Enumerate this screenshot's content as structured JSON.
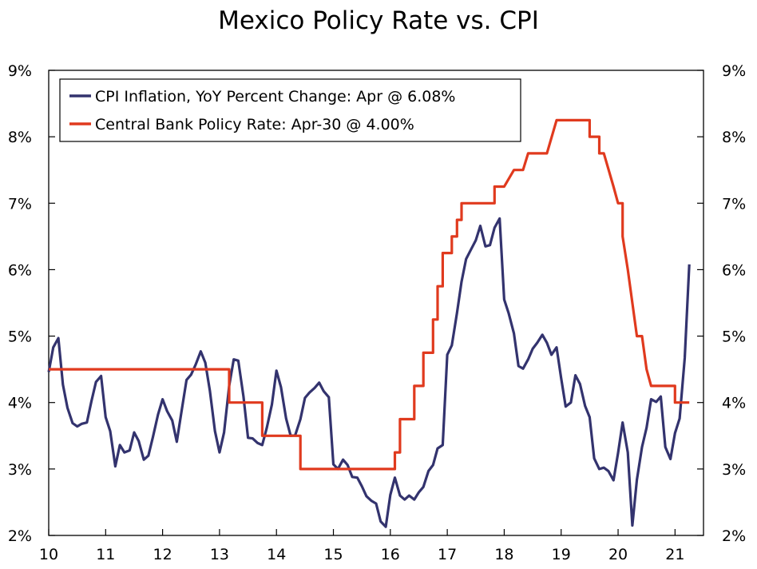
{
  "chart_data": {
    "type": "line",
    "title": "Mexico Policy Rate vs. CPI",
    "xlabel": "",
    "ylabel": "",
    "xlim": [
      2010,
      2021.5
    ],
    "ylim": [
      2,
      9
    ],
    "x_ticks": [
      {
        "value": 2010,
        "label": "10"
      },
      {
        "value": 2011,
        "label": "11"
      },
      {
        "value": 2012,
        "label": "12"
      },
      {
        "value": 2013,
        "label": "13"
      },
      {
        "value": 2014,
        "label": "14"
      },
      {
        "value": 2015,
        "label": "15"
      },
      {
        "value": 2016,
        "label": "16"
      },
      {
        "value": 2017,
        "label": "17"
      },
      {
        "value": 2018,
        "label": "18"
      },
      {
        "value": 2019,
        "label": "19"
      },
      {
        "value": 2020,
        "label": "20"
      },
      {
        "value": 2021,
        "label": "21"
      }
    ],
    "y_ticks": [
      {
        "value": 2,
        "label": "2%"
      },
      {
        "value": 3,
        "label": "3%"
      },
      {
        "value": 4,
        "label": "4%"
      },
      {
        "value": 5,
        "label": "5%"
      },
      {
        "value": 6,
        "label": "6%"
      },
      {
        "value": 7,
        "label": "7%"
      },
      {
        "value": 8,
        "label": "8%"
      },
      {
        "value": 9,
        "label": "9%"
      }
    ],
    "legend_position": "top-left",
    "series": [
      {
        "name": "CPI Inflation, YoY Percent Change: Apr @ 6.08%",
        "color": "#33336e",
        "x": [
          2010.0,
          2010.08,
          2010.17,
          2010.25,
          2010.33,
          2010.42,
          2010.5,
          2010.58,
          2010.67,
          2010.75,
          2010.83,
          2010.92,
          2011.0,
          2011.08,
          2011.17,
          2011.25,
          2011.33,
          2011.42,
          2011.5,
          2011.58,
          2011.67,
          2011.75,
          2011.83,
          2011.92,
          2012.0,
          2012.08,
          2012.17,
          2012.25,
          2012.33,
          2012.42,
          2012.5,
          2012.58,
          2012.67,
          2012.75,
          2012.83,
          2012.92,
          2013.0,
          2013.08,
          2013.17,
          2013.25,
          2013.33,
          2013.42,
          2013.5,
          2013.58,
          2013.67,
          2013.75,
          2013.83,
          2013.92,
          2014.0,
          2014.08,
          2014.17,
          2014.25,
          2014.33,
          2014.42,
          2014.5,
          2014.58,
          2014.67,
          2014.75,
          2014.83,
          2014.92,
          2015.0,
          2015.08,
          2015.17,
          2015.25,
          2015.33,
          2015.42,
          2015.5,
          2015.58,
          2015.67,
          2015.75,
          2015.83,
          2015.92,
          2016.0,
          2016.08,
          2016.17,
          2016.25,
          2016.33,
          2016.42,
          2016.5,
          2016.58,
          2016.67,
          2016.75,
          2016.83,
          2016.92,
          2017.0,
          2017.08,
          2017.17,
          2017.25,
          2017.33,
          2017.42,
          2017.5,
          2017.58,
          2017.67,
          2017.75,
          2017.83,
          2017.92,
          2018.0,
          2018.08,
          2018.17,
          2018.25,
          2018.33,
          2018.42,
          2018.5,
          2018.58,
          2018.67,
          2018.75,
          2018.83,
          2018.92,
          2019.0,
          2019.08,
          2019.17,
          2019.25,
          2019.33,
          2019.42,
          2019.5,
          2019.58,
          2019.67,
          2019.75,
          2019.83,
          2019.92,
          2020.0,
          2020.08,
          2020.17,
          2020.25,
          2020.33,
          2020.42,
          2020.5,
          2020.58,
          2020.67,
          2020.75,
          2020.83,
          2020.92,
          2021.0,
          2021.08,
          2021.17,
          2021.25
        ],
        "values": [
          4.46,
          4.83,
          4.97,
          4.27,
          3.92,
          3.69,
          3.64,
          3.68,
          3.7,
          4.02,
          4.31,
          4.4,
          3.78,
          3.57,
          3.04,
          3.36,
          3.25,
          3.28,
          3.55,
          3.42,
          3.14,
          3.2,
          3.48,
          3.82,
          4.05,
          3.87,
          3.73,
          3.41,
          3.85,
          4.34,
          4.42,
          4.57,
          4.77,
          4.6,
          4.18,
          3.57,
          3.25,
          3.55,
          4.25,
          4.65,
          4.63,
          4.09,
          3.47,
          3.46,
          3.39,
          3.36,
          3.62,
          3.97,
          4.48,
          4.23,
          3.76,
          3.5,
          3.51,
          3.75,
          4.07,
          4.15,
          4.22,
          4.3,
          4.17,
          4.08,
          3.07,
          3.0,
          3.14,
          3.06,
          2.88,
          2.87,
          2.74,
          2.59,
          2.52,
          2.48,
          2.21,
          2.13,
          2.61,
          2.87,
          2.6,
          2.54,
          2.6,
          2.54,
          2.65,
          2.73,
          2.97,
          3.06,
          3.31,
          3.36,
          4.72,
          4.86,
          5.35,
          5.82,
          6.16,
          6.31,
          6.44,
          6.66,
          6.35,
          6.37,
          6.63,
          6.77,
          5.55,
          5.34,
          5.04,
          4.55,
          4.51,
          4.65,
          4.81,
          4.9,
          5.02,
          4.9,
          4.72,
          4.83,
          4.37,
          3.94,
          4.0,
          4.41,
          4.28,
          3.95,
          3.78,
          3.16,
          3.0,
          3.02,
          2.97,
          2.83,
          3.24,
          3.7,
          3.25,
          2.15,
          2.84,
          3.33,
          3.62,
          4.05,
          4.01,
          4.09,
          3.33,
          3.15,
          3.54,
          3.76,
          4.67,
          6.08
        ]
      },
      {
        "name": "Central Bank Policy Rate: Apr-30 @ 4.00%",
        "color": "#e03a1e",
        "x": [
          2010.0,
          2013.17,
          2013.17,
          2013.67,
          2013.67,
          2013.75,
          2013.75,
          2014.42,
          2014.42,
          2015.92,
          2015.92,
          2016.08,
          2016.08,
          2016.17,
          2016.17,
          2016.42,
          2016.42,
          2016.58,
          2016.58,
          2016.75,
          2016.75,
          2016.83,
          2016.83,
          2016.92,
          2016.92,
          2017.08,
          2017.08,
          2017.17,
          2017.17,
          2017.25,
          2017.25,
          2017.33,
          2017.33,
          2017.42,
          2017.42,
          2017.83,
          2017.83,
          2017.92,
          2017.92,
          2018.0,
          2018.0,
          2018.17,
          2018.17,
          2018.33,
          2018.33,
          2018.42,
          2018.42,
          2018.75,
          2018.75,
          2018.92,
          2018.92,
          2019.5,
          2019.5,
          2019.67,
          2019.67,
          2019.75,
          2019.75,
          2019.92,
          2019.92,
          2020.0,
          2020.0,
          2020.08,
          2020.08,
          2020.17,
          2020.17,
          2020.25,
          2020.25,
          2020.33,
          2020.33,
          2020.42,
          2020.42,
          2020.5,
          2020.5,
          2020.58,
          2020.58,
          2020.67,
          2020.67,
          2020.75,
          2020.75,
          2021.0,
          2021.0,
          2021.08,
          2021.08,
          2021.25
        ],
        "values": [
          4.5,
          4.5,
          4.0,
          4.0,
          4.0,
          4.0,
          3.5,
          3.5,
          3.0,
          3.0,
          3.0,
          3.0,
          3.25,
          3.25,
          3.75,
          3.75,
          4.25,
          4.25,
          4.75,
          4.75,
          5.25,
          5.25,
          5.75,
          5.75,
          6.25,
          6.25,
          6.5,
          6.5,
          6.75,
          6.75,
          7.0,
          7.0,
          7.0,
          7.0,
          7.0,
          7.0,
          7.25,
          7.25,
          7.25,
          7.25,
          7.25,
          7.5,
          7.5,
          7.5,
          7.5,
          7.75,
          7.75,
          7.75,
          7.75,
          8.25,
          8.25,
          8.25,
          8.0,
          8.0,
          7.75,
          7.75,
          7.75,
          7.25,
          7.25,
          7.0,
          7.0,
          7.0,
          6.5,
          6.0,
          6.0,
          5.5,
          5.5,
          5.0,
          5.0,
          5.0,
          5.0,
          4.5,
          4.5,
          4.25,
          4.25,
          4.25,
          4.25,
          4.25,
          4.25,
          4.25,
          4.0,
          4.0,
          4.0,
          4.0
        ]
      }
    ]
  }
}
